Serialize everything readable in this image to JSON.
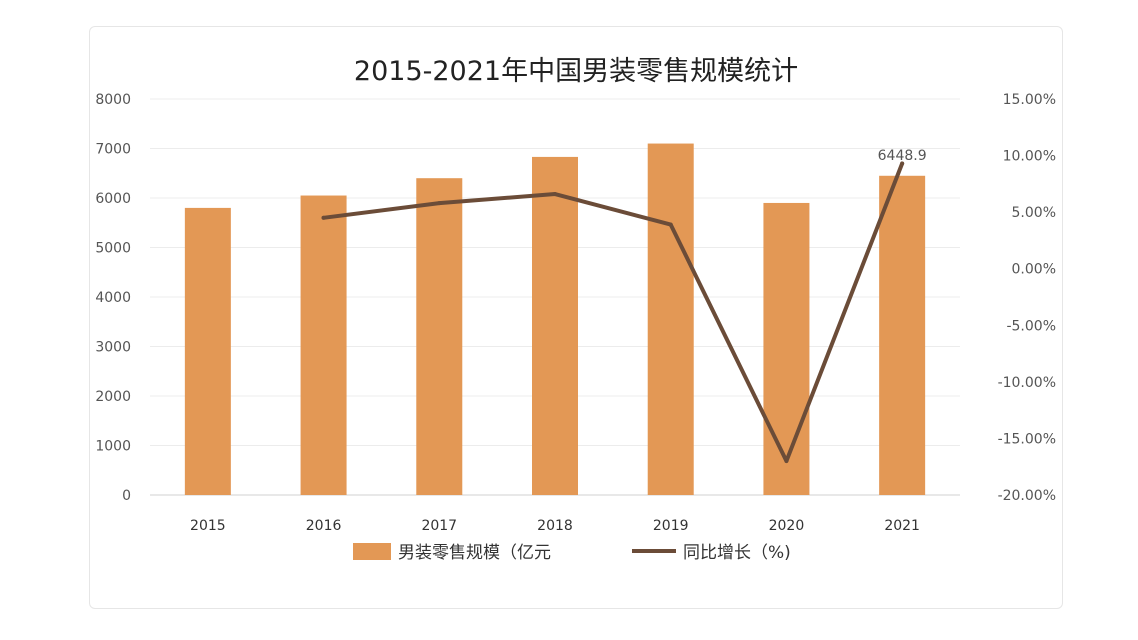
{
  "chart_data": {
    "type": "bar",
    "title": "2015-2021年中国男装零售规模统计",
    "categories": [
      "2015",
      "2016",
      "2017",
      "2018",
      "2019",
      "2020",
      "2021"
    ],
    "series": [
      {
        "name": "男装零售规模（亿元",
        "type": "bar",
        "axis": "left",
        "color": "#E39855",
        "values": [
          5800,
          6050,
          6400,
          6830,
          7100,
          5900,
          6448.9
        ]
      },
      {
        "name": "同比增长（%)",
        "type": "line",
        "axis": "right",
        "color": "#6B4C38",
        "values": [
          null,
          4.5,
          5.8,
          6.6,
          3.9,
          -17.0,
          9.3
        ]
      }
    ],
    "y_left": {
      "ylim": [
        0,
        8000
      ],
      "ticks": [
        "8000",
        "7000",
        "6000",
        "5000",
        "4000",
        "3000",
        "2000",
        "1000",
        "0"
      ]
    },
    "y_right": {
      "ylim": [
        -20,
        15
      ],
      "ticks": [
        "15.00%",
        "10.00%",
        "5.00%",
        "0.00%",
        "-5.00%",
        "-10.00%",
        "-15.00%",
        "-20.00%"
      ]
    },
    "data_labels": [
      {
        "category": "2021",
        "text": "6448.9"
      }
    ],
    "grid": true,
    "legend_position": "bottom"
  }
}
